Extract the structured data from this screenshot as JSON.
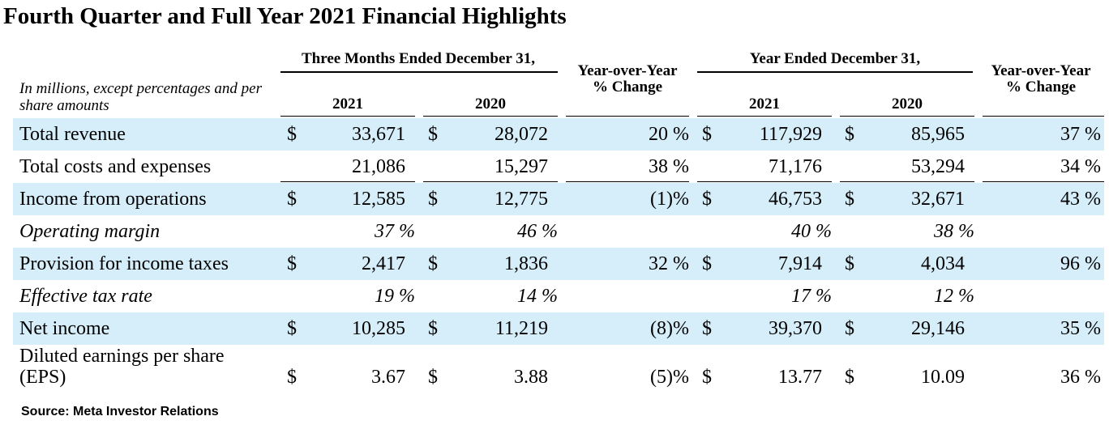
{
  "title": "Fourth Quarter and Full Year 2021 Financial Highlights",
  "note": "In millions, except percentages and per share amounts",
  "colors": {
    "band": "#d6eefa"
  },
  "headers": {
    "three_months": "Three Months Ended December 31,",
    "year_ended": "Year Ended December 31,",
    "yoy_change": "Year-over-Year % Change",
    "y2021": "2021",
    "y2020": "2020"
  },
  "rows": [
    {
      "label": "Total revenue",
      "q21": {
        "sign": "$",
        "val": "33,671"
      },
      "q20": {
        "sign": "$",
        "val": "28,072"
      },
      "qchg": "20 %",
      "y21": {
        "sign": "$",
        "val": "117,929"
      },
      "y20": {
        "sign": "$",
        "val": "85,965"
      },
      "ychg": "37 %"
    },
    {
      "label": "Total costs and expenses",
      "q21": {
        "sign": "",
        "val": "21,086"
      },
      "q20": {
        "sign": "",
        "val": "15,297"
      },
      "qchg": "38 %",
      "y21": {
        "sign": "",
        "val": "71,176"
      },
      "y20": {
        "sign": "",
        "val": "53,294"
      },
      "ychg": "34 %"
    },
    {
      "label": "Income from operations",
      "q21": {
        "sign": "$",
        "val": "12,585"
      },
      "q20": {
        "sign": "$",
        "val": "12,775"
      },
      "qchg": "(1)%",
      "y21": {
        "sign": "$",
        "val": "46,753"
      },
      "y20": {
        "sign": "$",
        "val": "32,671"
      },
      "ychg": "43 %"
    },
    {
      "label": "Operating margin",
      "q21": {
        "sign": "",
        "val": "37 %"
      },
      "q20": {
        "sign": "",
        "val": "46 %"
      },
      "qchg": "",
      "y21": {
        "sign": "",
        "val": "40 %"
      },
      "y20": {
        "sign": "",
        "val": "38 %"
      },
      "ychg": ""
    },
    {
      "label": "Provision for income taxes",
      "q21": {
        "sign": "$",
        "val": "2,417"
      },
      "q20": {
        "sign": "$",
        "val": "1,836"
      },
      "qchg": "32 %",
      "y21": {
        "sign": "$",
        "val": "7,914"
      },
      "y20": {
        "sign": "$",
        "val": "4,034"
      },
      "ychg": "96 %"
    },
    {
      "label": "Effective tax rate",
      "q21": {
        "sign": "",
        "val": "19 %"
      },
      "q20": {
        "sign": "",
        "val": "14 %"
      },
      "qchg": "",
      "y21": {
        "sign": "",
        "val": "17 %"
      },
      "y20": {
        "sign": "",
        "val": "12 %"
      },
      "ychg": ""
    },
    {
      "label": "Net income",
      "q21": {
        "sign": "$",
        "val": "10,285"
      },
      "q20": {
        "sign": "$",
        "val": "11,219"
      },
      "qchg": "(8)%",
      "y21": {
        "sign": "$",
        "val": "39,370"
      },
      "y20": {
        "sign": "$",
        "val": "29,146"
      },
      "ychg": "35 %"
    },
    {
      "label": "Diluted earnings per share",
      "label2": "(EPS)",
      "q21": {
        "sign": "$",
        "val": "3.67"
      },
      "q20": {
        "sign": "$",
        "val": "3.88"
      },
      "qchg": "(5)%",
      "y21": {
        "sign": "$",
        "val": "13.77"
      },
      "y20": {
        "sign": "$",
        "val": "10.09"
      },
      "ychg": "36 %"
    }
  ],
  "source": "Source: Meta Investor Relations"
}
